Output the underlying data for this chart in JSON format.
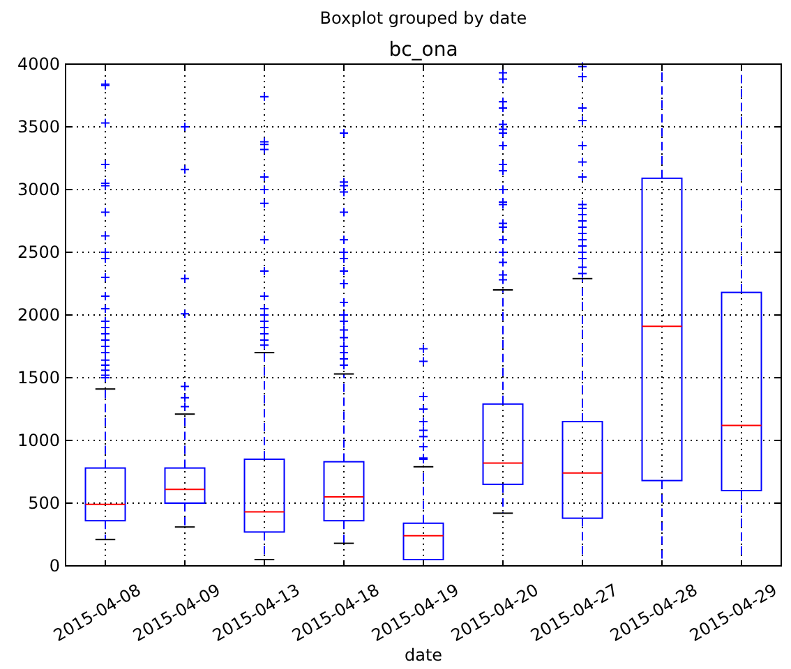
{
  "chart_data": {
    "type": "box",
    "title": "bc_ona",
    "subtitle": "Boxplot grouped by date",
    "xlabel": "date",
    "categories": [
      "2015-04-08",
      "2015-04-09",
      "2015-04-13",
      "2015-04-18",
      "2015-04-19",
      "2015-04-20",
      "2015-04-27",
      "2015-04-28",
      "2015-04-29"
    ],
    "ylim": [
      0,
      4000
    ],
    "yticks": [
      0,
      500,
      1000,
      1500,
      2000,
      2500,
      3000,
      3500,
      4000
    ],
    "grid": true,
    "color": "#0000ff",
    "boxes": [
      {
        "low": 210,
        "q1": 360,
        "median": 490,
        "q3": 780,
        "high": 1410,
        "outliers": [
          1500,
          1520,
          1560,
          1600,
          1640,
          1700,
          1750,
          1800,
          1850,
          1900,
          1950,
          2050,
          2150,
          2300,
          2450,
          2500,
          2630,
          2820,
          3030,
          3050,
          3200,
          3530,
          3830,
          3840
        ]
      },
      {
        "low": 310,
        "q1": 500,
        "median": 610,
        "q3": 780,
        "high": 1210,
        "outliers": [
          1270,
          1340,
          1430,
          2010,
          2290,
          3160,
          3500
        ]
      },
      {
        "low": 50,
        "q1": 270,
        "median": 430,
        "q3": 850,
        "high": 1700,
        "outliers": [
          1760,
          1800,
          1850,
          1900,
          1950,
          2000,
          2050,
          2150,
          2350,
          2600,
          2890,
          3000,
          3100,
          3320,
          3360,
          3380,
          3740
        ]
      },
      {
        "low": 180,
        "q1": 360,
        "median": 550,
        "q3": 830,
        "high": 1530,
        "outliers": [
          1600,
          1650,
          1700,
          1750,
          1820,
          1880,
          1950,
          2000,
          2100,
          2250,
          2350,
          2450,
          2500,
          2600,
          2820,
          2980,
          3030,
          3060,
          3450
        ]
      },
      {
        "low": 50,
        "q1": 50,
        "median": 240,
        "q3": 340,
        "high": 790,
        "outliers": [
          850,
          860,
          950,
          1030,
          1080,
          1150,
          1250,
          1350,
          1630,
          1730
        ]
      },
      {
        "low": 420,
        "q1": 650,
        "median": 820,
        "q3": 1290,
        "high": 2200,
        "outliers": [
          2280,
          2320,
          2420,
          2500,
          2600,
          2700,
          2730,
          2880,
          2900,
          3000,
          3150,
          3200,
          3350,
          3450,
          3480,
          3520,
          3650,
          3700,
          3880,
          3930
        ]
      },
      {
        "low": 0,
        "q1": 380,
        "median": 740,
        "q3": 1150,
        "high": 2290,
        "outliers": [
          2330,
          2380,
          2450,
          2500,
          2550,
          2600,
          2650,
          2700,
          2750,
          2800,
          2850,
          2880,
          3100,
          3220,
          3350,
          3550,
          3650,
          3900,
          3980
        ]
      },
      {
        "low": 0,
        "q1": 680,
        "median": 1910,
        "q3": 3090,
        "high": 4000
      },
      {
        "low": 0,
        "q1": 600,
        "median": 1120,
        "q3": 2180,
        "high": 4000
      }
    ]
  }
}
